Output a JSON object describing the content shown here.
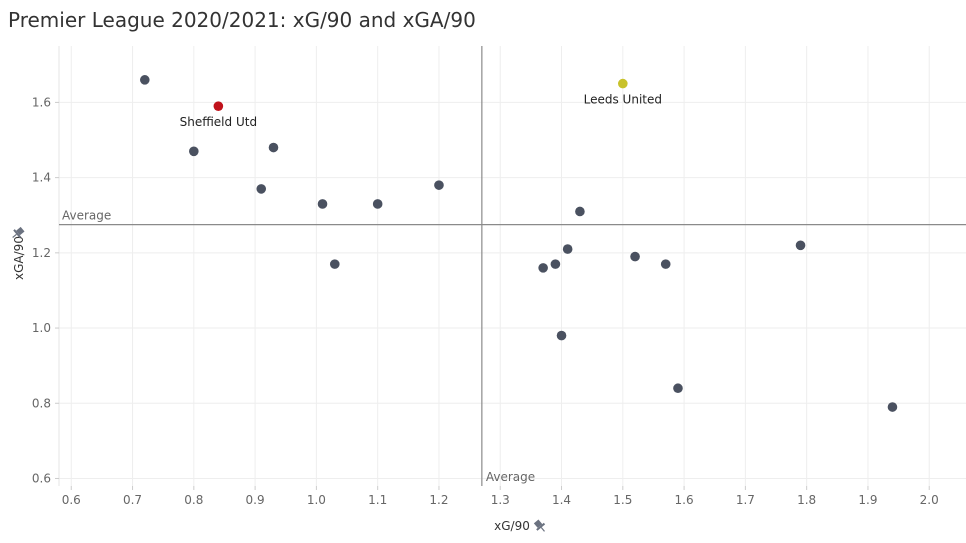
{
  "page": {
    "title": "Premier League 2020/2021: xG/90 and xGA/90"
  },
  "chart_data": {
    "type": "scatter",
    "title": "Premier League 2020/2021: xG/90 and xGA/90",
    "xlabel": "xG/90",
    "ylabel": "xGA/90",
    "xlim": [
      0.58,
      2.06
    ],
    "ylim": [
      0.58,
      1.75
    ],
    "x_ticks": [
      0.6,
      0.7,
      0.8,
      0.9,
      1.0,
      1.1,
      1.2,
      1.3,
      1.4,
      1.5,
      1.6,
      1.7,
      1.8,
      1.9,
      2.0
    ],
    "x_tick_labels": [
      "0.6",
      "0.7",
      "0.8",
      "0.9",
      "1.0",
      "1.1",
      "1.2",
      "1.3",
      "1.4",
      "1.5",
      "1.6",
      "1.7",
      "1.8",
      "1.9",
      "2.0"
    ],
    "y_ticks": [
      0.6,
      0.8,
      1.0,
      1.2,
      1.4,
      1.6
    ],
    "y_tick_labels": [
      "0.6",
      "0.8",
      "1.0",
      "1.2",
      "1.4",
      "1.6"
    ],
    "grid": true,
    "reference_lines": [
      {
        "axis": "x",
        "value": 1.27,
        "label": "Average"
      },
      {
        "axis": "y",
        "value": 1.275,
        "label": "Average"
      }
    ],
    "colors": {
      "default": "#4a5160",
      "highlight_red": "#c0121b",
      "highlight_yellow": "#c8c22b"
    },
    "points": [
      {
        "x": 0.72,
        "y": 1.66
      },
      {
        "x": 0.84,
        "y": 1.59,
        "label": "Sheffield Utd",
        "color": "#c0121b"
      },
      {
        "x": 0.8,
        "y": 1.47
      },
      {
        "x": 0.93,
        "y": 1.48
      },
      {
        "x": 0.91,
        "y": 1.37
      },
      {
        "x": 1.01,
        "y": 1.33
      },
      {
        "x": 1.1,
        "y": 1.33
      },
      {
        "x": 1.2,
        "y": 1.38
      },
      {
        "x": 1.03,
        "y": 1.17
      },
      {
        "x": 1.5,
        "y": 1.65,
        "label": "Leeds United",
        "color": "#c8c22b"
      },
      {
        "x": 1.43,
        "y": 1.31
      },
      {
        "x": 1.41,
        "y": 1.21
      },
      {
        "x": 1.39,
        "y": 1.17
      },
      {
        "x": 1.37,
        "y": 1.16
      },
      {
        "x": 1.52,
        "y": 1.19
      },
      {
        "x": 1.57,
        "y": 1.17
      },
      {
        "x": 1.79,
        "y": 1.22
      },
      {
        "x": 1.4,
        "y": 0.98
      },
      {
        "x": 1.59,
        "y": 0.84
      },
      {
        "x": 1.94,
        "y": 0.79
      }
    ]
  }
}
